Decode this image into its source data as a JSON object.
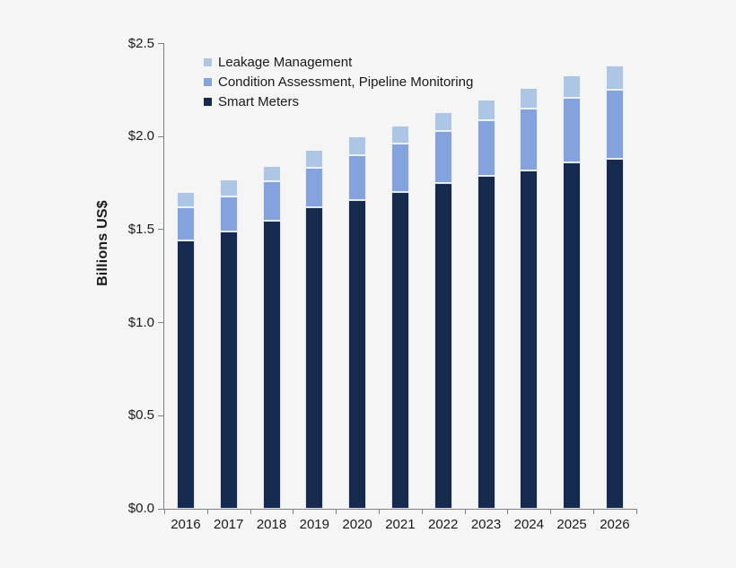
{
  "colors": {
    "background": "#f5f5f6",
    "axis": "#808080",
    "text": "#1a1a1a",
    "smart_meters": "#16294e",
    "condition_assessment": "#84a3de",
    "leakage_management": "#adc6e4"
  },
  "chart_data": {
    "type": "bar",
    "stacked": true,
    "title": "",
    "xlabel": "",
    "ylabel": "Billions US$",
    "ylim": [
      0,
      2.5
    ],
    "yticks": [
      0,
      0.5,
      1.0,
      1.5,
      2.0,
      2.5
    ],
    "ytick_labels": [
      "$0.0",
      "$0.5",
      "$1.0",
      "$1.5",
      "$2.0",
      "$2.5"
    ],
    "grid": false,
    "legend_position": "top-left-inside",
    "categories": [
      "2016",
      "2017",
      "2018",
      "2019",
      "2020",
      "2021",
      "2022",
      "2023",
      "2024",
      "2025",
      "2026"
    ],
    "series": [
      {
        "key": "smart-meters",
        "name": "Smart Meters",
        "color": "#16294e",
        "values": [
          1.44,
          1.49,
          1.55,
          1.62,
          1.66,
          1.7,
          1.75,
          1.79,
          1.82,
          1.86,
          1.88
        ]
      },
      {
        "key": "condition-assessment-pipeline-monitoring",
        "name": "Condition Assessment, Pipeline Monitoring",
        "color": "#84a3de",
        "values": [
          0.18,
          0.19,
          0.21,
          0.21,
          0.24,
          0.26,
          0.28,
          0.3,
          0.33,
          0.35,
          0.37
        ]
      },
      {
        "key": "leakage-management",
        "name": "Leakage Management",
        "color": "#adc6e4",
        "values": [
          0.08,
          0.09,
          0.08,
          0.1,
          0.1,
          0.1,
          0.1,
          0.11,
          0.11,
          0.12,
          0.13
        ]
      }
    ],
    "totals": [
      1.7,
      1.77,
      1.84,
      1.93,
      2.0,
      2.06,
      2.13,
      2.2,
      2.26,
      2.33,
      2.38
    ],
    "legend_top_to_bottom": [
      "Leakage Management",
      "Condition Assessment, Pipeline Monitoring",
      "Smart Meters"
    ]
  }
}
